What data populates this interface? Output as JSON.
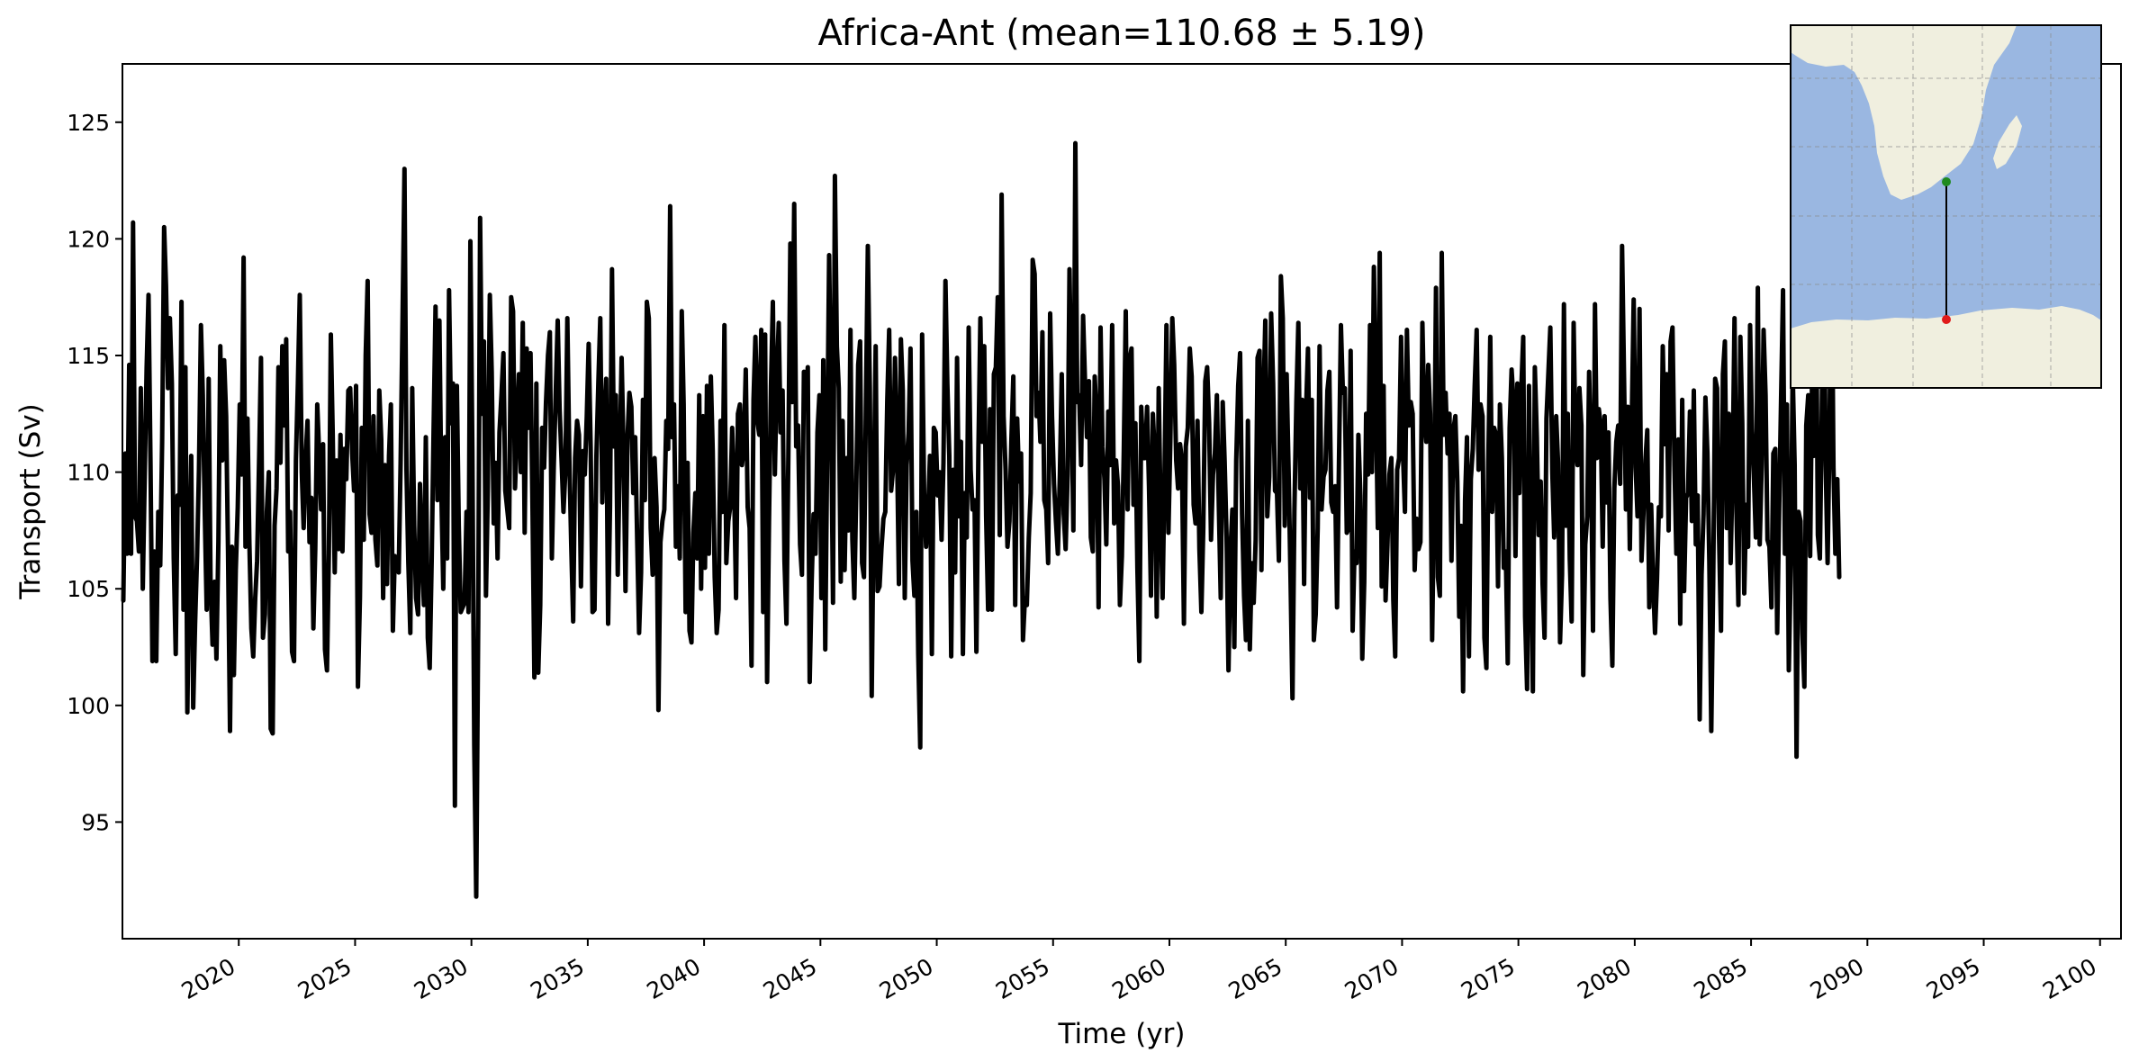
{
  "chart_data": {
    "type": "line",
    "title": "Africa-Ant (mean=110.68 ± 5.19)",
    "xlabel": "Time (yr)",
    "ylabel": "Transport (Sv)",
    "xlim": [
      2015.0,
      2100.9
    ],
    "ylim": [
      90.0,
      127.5
    ],
    "xticks": [
      2020,
      2025,
      2030,
      2035,
      2040,
      2045,
      2050,
      2055,
      2060,
      2065,
      2070,
      2075,
      2080,
      2085,
      2090,
      2095,
      2100
    ],
    "yticks": [
      95,
      100,
      105,
      110,
      115,
      120,
      125
    ],
    "grid": false,
    "legend": "none",
    "series": [
      {
        "color": "#000000",
        "x_start": 2015.04,
        "x_step": 0.0833333,
        "values": [
          104.5,
          110.8,
          106.5,
          114.6,
          106.5,
          120.7,
          108.1,
          107.9,
          106.6,
          113.6,
          105.0,
          109.7,
          114.5,
          117.6,
          110.3,
          101.9,
          106.6,
          101.9,
          108.3,
          106.0,
          111.3,
          120.5,
          118.0,
          113.6,
          116.6,
          113.8,
          106.3,
          102.2,
          109.0,
          108.6,
          117.3,
          104.1,
          114.5,
          99.7,
          106.4,
          110.7,
          99.9,
          103.5,
          106.4,
          110.1,
          116.3,
          113.3,
          108.2,
          104.1,
          114.0,
          105.2,
          102.6,
          105.3,
          102.0,
          107.0,
          115.4,
          110.5,
          114.8,
          112.4,
          106.6,
          98.9,
          106.8,
          101.3,
          105.8,
          108.5,
          112.9,
          109.9,
          119.2,
          106.8,
          112.3,
          107.0,
          103.3,
          102.1,
          104.6,
          106.2,
          110.5,
          114.9,
          102.9,
          103.9,
          108.3,
          110.0,
          99.0,
          98.8,
          107.7,
          109.3,
          114.5,
          110.4,
          115.4,
          112.0,
          115.7,
          106.6,
          108.3,
          102.3,
          101.9,
          110.5,
          113.8,
          117.6,
          110.0,
          107.6,
          110.6,
          112.2,
          107.0,
          108.9,
          103.3,
          106.7,
          112.9,
          110.7,
          108.4,
          111.2,
          102.4,
          101.5,
          106.5,
          115.9,
          111.6,
          105.7,
          110.5,
          106.7,
          111.6,
          106.6,
          111.0,
          109.7,
          113.5,
          113.6,
          110.8,
          109.2,
          113.7,
          100.8,
          104.6,
          111.9,
          107.1,
          115.0,
          118.2,
          108.2,
          107.4,
          112.4,
          107.1,
          106.0,
          113.5,
          111.4,
          104.6,
          110.3,
          105.2,
          110.7,
          112.9,
          103.2,
          106.4,
          105.9,
          105.7,
          110.4,
          116.7,
          123.0,
          110.1,
          106.1,
          103.1,
          113.6,
          107.7,
          104.6,
          103.9,
          109.5,
          106.5,
          104.3,
          111.5,
          102.9,
          101.6,
          106.2,
          111.7,
          117.1,
          108.8,
          116.5,
          109.3,
          105.0,
          111.5,
          106.3,
          117.8,
          112.1,
          113.8,
          95.7,
          113.7,
          107.7,
          104.0,
          104.2,
          104.4,
          108.3,
          104.0,
          119.9,
          110.9,
          98.3,
          91.8,
          103.6,
          120.9,
          112.5,
          115.6,
          104.7,
          109.3,
          117.6,
          114.3,
          107.8,
          110.4,
          106.3,
          111.7,
          113.3,
          115.1,
          109.2,
          108.4,
          107.6,
          117.5,
          116.9,
          109.3,
          111.8,
          114.2,
          110.0,
          116.4,
          107.4,
          115.3,
          111.9,
          115.1,
          108.5,
          101.2,
          113.8,
          101.4,
          104.3,
          111.9,
          110.2,
          113.0,
          115.0,
          116.0,
          106.3,
          110.2,
          113.4,
          116.5,
          112.7,
          110.5,
          108.3,
          110.1,
          116.6,
          110.6,
          106.9,
          103.6,
          110.6,
          112.2,
          111.6,
          105.1,
          110.9,
          109.9,
          112.4,
          115.5,
          111.1,
          104.0,
          104.1,
          110.7,
          113.9,
          116.6,
          108.7,
          112.2,
          114.0,
          103.5,
          108.5,
          118.7,
          111.1,
          113.3,
          105.6,
          110.6,
          114.9,
          110.8,
          104.9,
          111.4,
          113.4,
          112.8,
          109.1,
          111.5,
          107.1,
          103.1,
          105.7,
          113.1,
          108.8,
          117.3,
          116.6,
          107.6,
          105.6,
          110.6,
          108.5,
          99.8,
          107.0,
          107.9,
          108.4,
          112.2,
          111.0,
          121.4,
          111.5,
          112.9,
          106.8,
          109.4,
          106.3,
          116.9,
          112.9,
          104.0,
          110.4,
          103.2,
          102.7,
          107.4,
          109.1,
          106.3,
          113.3,
          105.0,
          112.4,
          105.9,
          113.7,
          106.5,
          114.1,
          110.9,
          105.5,
          103.1,
          104.1,
          112.2,
          108.3,
          116.3,
          106.1,
          107.9,
          108.5,
          111.9,
          109.5,
          104.6,
          112.5,
          112.9,
          110.3,
          111.0,
          114.4,
          108.5,
          107.6,
          101.7,
          113.1,
          115.8,
          112.2,
          111.6,
          116.1,
          104.0,
          115.9,
          101.0,
          107.9,
          113.7,
          117.3,
          109.9,
          113.9,
          116.4,
          111.7,
          113.5,
          106.2,
          103.5,
          110.7,
          119.8,
          113.0,
          121.5,
          111.1,
          112.0,
          106.9,
          105.6,
          114.3,
          113.1,
          114.5,
          101.0,
          105.3,
          108.2,
          106.5,
          111.7,
          113.3,
          104.6,
          114.8,
          102.4,
          110.8,
          119.3,
          113.0,
          104.4,
          122.7,
          115.4,
          113.6,
          105.3,
          112.2,
          105.8,
          110.6,
          107.5,
          116.1,
          107.1,
          104.6,
          109.2,
          114.6,
          115.6,
          106.1,
          105.5,
          113.0,
          119.7,
          113.6,
          100.4,
          108.6,
          115.4,
          104.9,
          105.1,
          106.7,
          108.0,
          108.3,
          113.1,
          116.1,
          109.2,
          110.1,
          114.9,
          111.4,
          105.2,
          115.7,
          113.5,
          104.6,
          110.3,
          111.7,
          115.3,
          106.2,
          104.7,
          108.3,
          102.2,
          98.2,
          115.9,
          109.1,
          106.8,
          108.1,
          110.7,
          102.2,
          111.9,
          111.7,
          109.0,
          110.0,
          107.1,
          110.4,
          118.2,
          113.8,
          110.7,
          102.1,
          110.1,
          105.7,
          114.9,
          108.1,
          111.3,
          102.2,
          109.1,
          107.2,
          116.2,
          110.1,
          108.4,
          108.8,
          102.3,
          110.9,
          116.6,
          111.3,
          115.4,
          108.1,
          104.1,
          112.7,
          104.1,
          114.2,
          114.5,
          117.5,
          107.3,
          121.9,
          112.4,
          110.1,
          106.8,
          107.9,
          111.3,
          114.1,
          104.3,
          112.3,
          109.6,
          110.8,
          102.8,
          104.6,
          104.3,
          107.2,
          109.1,
          119.1,
          118.5,
          112.4,
          113.4,
          111.3,
          116.0,
          108.8,
          108.4,
          106.1,
          116.8,
          112.4,
          109.5,
          107.9,
          106.5,
          109.9,
          114.2,
          108.2,
          106.7,
          109.9,
          118.7,
          113.0,
          107.5,
          124.1,
          113.0,
          113.3,
          110.3,
          116.7,
          113.8,
          111.5,
          113.9,
          107.2,
          106.6,
          114.1,
          112.3,
          104.2,
          116.2,
          111.1,
          109.7,
          106.9,
          112.6,
          110.3,
          116.3,
          107.8,
          110.5,
          109.4,
          104.3,
          106.4,
          110.9,
          116.9,
          108.4,
          114.8,
          115.3,
          108.6,
          112.1,
          105.9,
          101.9,
          112.8,
          110.6,
          110.6,
          112.8,
          109.4,
          104.7,
          112.5,
          110.7,
          103.8,
          113.6,
          108.3,
          104.6,
          110.0,
          116.3,
          107.4,
          111.3,
          116.6,
          114.6,
          110.5,
          109.3,
          111.2,
          110.5,
          103.5,
          111.1,
          111.9,
          115.3,
          114.1,
          108.6,
          107.8,
          112.2,
          106.7,
          104.0,
          107.6,
          113.9,
          114.5,
          112.1,
          107.1,
          109.9,
          110.8,
          113.3,
          108.5,
          104.6,
          113.0,
          110.5,
          107.2,
          101.5,
          106.6,
          108.4,
          102.5,
          110.5,
          113.7,
          115.1,
          108.2,
          104.7,
          102.8,
          112.2,
          102.4,
          106.1,
          104.4,
          107.1,
          114.9,
          115.2,
          105.8,
          113.0,
          116.5,
          108.1,
          109.8,
          116.8,
          113.8,
          109.2,
          109.1,
          106.2,
          118.4,
          116.6,
          107.7,
          114.2,
          110.0,
          105.5,
          100.3,
          108.3,
          113.0,
          116.4,
          109.3,
          113.1,
          105.2,
          112.7,
          115.3,
          108.9,
          113.1,
          102.8,
          103.9,
          107.6,
          115.4,
          108.4,
          109.8,
          110.1,
          113.5,
          114.3,
          108.7,
          108.3,
          109.4,
          104.2,
          110.6,
          116.3,
          113.4,
          113.6,
          107.4,
          107.6,
          115.2,
          103.2,
          106.6,
          106.1,
          111.6,
          109.0,
          102.0,
          105.3,
          112.5,
          109.9,
          116.3,
          110.0,
          118.8,
          113.3,
          107.6,
          119.4,
          105.1,
          113.7,
          104.5,
          106.9,
          109.9,
          110.6,
          104.5,
          102.1,
          110.1,
          110.6,
          115.8,
          110.7,
          108.3,
          116.1,
          112.0,
          113.0,
          112.5,
          105.8,
          108.0,
          106.7,
          107.0,
          116.4,
          112.4,
          111.3,
          114.6,
          112.5,
          102.8,
          108.6,
          117.9,
          105.5,
          104.7,
          119.4,
          111.6,
          113.4,
          110.8,
          112.5,
          106.2,
          111.8,
          112.4,
          109.6,
          103.8,
          107.7,
          100.6,
          108.8,
          111.5,
          102.1,
          109.7,
          111.0,
          113.7,
          116.1,
          110.1,
          112.9,
          112.4,
          102.9,
          101.6,
          110.4,
          115.8,
          108.3,
          111.9,
          111.6,
          105.1,
          112.9,
          110.6,
          105.9,
          106.6,
          101.8,
          111.9,
          114.4,
          113.0,
          106.4,
          113.8,
          109.1,
          113.5,
          115.8,
          103.8,
          100.7,
          113.7,
          106.0,
          100.6,
          114.5,
          111.5,
          107.3,
          109.6,
          105.2,
          102.9,
          112.3,
          114.3,
          116.2,
          110.0,
          107.2,
          112.4,
          110.4,
          102.7,
          105.6,
          117.2,
          107.7,
          112.5,
          106.3,
          103.6,
          116.4,
          111.2,
          110.3,
          113.6,
          112.0,
          101.3,
          106.9,
          108.1,
          114.3,
          110.5,
          103.2,
          117.2,
          110.6,
          112.7,
          112.0,
          106.8,
          112.4,
          108.7,
          111.7,
          104.6,
          101.7,
          109.3,
          111.3,
          112.0,
          109.5,
          119.7,
          114.0,
          108.4,
          112.8,
          106.7,
          112.3,
          117.4,
          110.2,
          108.1,
          117.0,
          106.2,
          108.2,
          110.5,
          111.8,
          104.2,
          108.6,
          105.3,
          103.1,
          105.4,
          108.5,
          108.1,
          115.4,
          111.2,
          114.2,
          107.5,
          115.6,
          116.2,
          110.3,
          106.5,
          111.4,
          103.5,
          113.1,
          104.9,
          108.9,
          109.1,
          112.6,
          107.9,
          113.5,
          106.9,
          109.0,
          99.4,
          105.6,
          108.2,
          113.2,
          110.8,
          106.2,
          98.9,
          105.2,
          114.0,
          113.6,
          107.3,
          103.2,
          114.2,
          115.6,
          107.6,
          112.5,
          106.1,
          110.2,
          116.6,
          108.3,
          104.3,
          115.8,
          112.1,
          104.8,
          108.6,
          106.8,
          116.3,
          111.8,
          109.7,
          107.2,
          117.9,
          106.9,
          110.3,
          116.1,
          113.3,
          107.1,
          106.8,
          104.2,
          110.8,
          111.0,
          103.1,
          108.4,
          113.1,
          117.8,
          106.5,
          112.9,
          101.5,
          106.0,
          114.3,
          110.3,
          97.8,
          108.3,
          107.9,
          103.1,
          100.8,
          112.0,
          113.3,
          106.4,
          114.3,
          110.7,
          118.6,
          107.3,
          106.3,
          112.4,
          119.7,
          110.3,
          106.1,
          111.9,
          121.0,
          110.2,
          106.5,
          109.7,
          105.5
        ]
      }
    ],
    "inset_map": {
      "land_color": "#f0efdf",
      "ocean_color": "#9ab7e1",
      "start_marker_color": "#1f8a1f",
      "end_marker_color": "#e01a1a",
      "section_line_color": "#000000"
    }
  }
}
